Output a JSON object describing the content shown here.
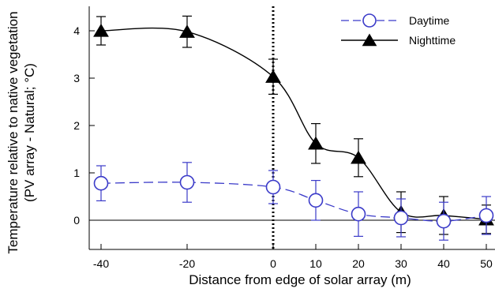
{
  "chart_data": {
    "type": "line",
    "xlabel": "Distance from edge of solar array (m)",
    "ylabel_line1": "Temperature relative to native vegetation",
    "ylabel_line2": "(PV array - Natural; °C)",
    "x_ticks": [
      -40,
      -20,
      0,
      10,
      20,
      30,
      40,
      50
    ],
    "y_ticks": [
      0,
      1,
      2,
      3,
      4
    ],
    "ylim": [
      -0.5,
      4.5
    ],
    "zero_line": 0,
    "vertical_marker_x": 0,
    "legend_position": "top-right",
    "series": [
      {
        "name": "Daytime",
        "color": "#3b3bc9",
        "marker": "open-circle",
        "line_style": "dashed",
        "x": [
          -40,
          -20,
          0,
          10,
          20,
          30,
          40,
          50
        ],
        "y": [
          0.78,
          0.8,
          0.7,
          0.42,
          0.13,
          0.05,
          -0.02,
          0.1
        ],
        "err": [
          0.37,
          0.42,
          0.35,
          0.42,
          0.47,
          0.4,
          0.4,
          0.4
        ]
      },
      {
        "name": "Nighttime",
        "color": "#000000",
        "marker": "filled-triangle",
        "line_style": "solid",
        "x": [
          -40,
          -20,
          0,
          10,
          20,
          30,
          40,
          50
        ],
        "y": [
          4.0,
          3.98,
          3.03,
          1.62,
          1.32,
          0.17,
          0.1,
          0.02
        ],
        "err": [
          0.3,
          0.33,
          0.37,
          0.42,
          0.4,
          0.43,
          0.4,
          0.3
        ]
      }
    ]
  }
}
